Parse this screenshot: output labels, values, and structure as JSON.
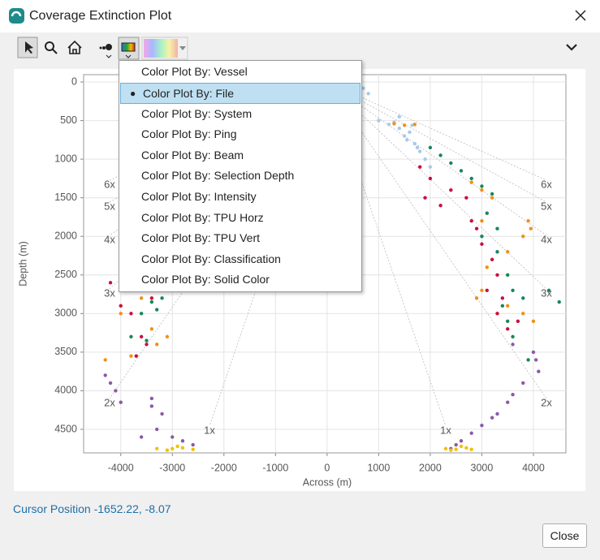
{
  "window": {
    "title": "Coverage Extinction Plot"
  },
  "menu": {
    "items": [
      "Color Plot By: Vessel",
      "Color Plot By: File",
      "Color Plot By: System",
      "Color Plot By: Ping",
      "Color Plot By: Beam",
      "Color Plot By: Selection Depth",
      "Color Plot By: Intensity",
      "Color Plot By: TPU Horz",
      "Color Plot By: TPU Vert",
      "Color Plot By: Classification",
      "Color Plot By: Solid Color"
    ],
    "selected": 1
  },
  "plot": {
    "type": "scatter",
    "xlabel": "Across (m)",
    "ylabel": "Depth (m)",
    "xlim": [
      -4720,
      4630
    ],
    "ylim": [
      -95,
      4805
    ],
    "y_inverted": true,
    "xticks": [
      -4000,
      -3000,
      -2000,
      -1000,
      0,
      1000,
      2000,
      3000,
      4000
    ],
    "yticks": [
      0,
      500,
      1000,
      1500,
      2000,
      2500,
      3000,
      3500,
      4000,
      4500
    ],
    "grid": true,
    "coverage_labels": {
      "left": [
        "6x",
        "5x",
        "4x",
        "3x",
        "2x",
        "1x"
      ],
      "right": [
        "6x",
        "5x",
        "4x",
        "3x",
        "2x",
        "1x"
      ]
    },
    "series": [
      {
        "color": "#a9c9ea",
        "x": [
          1000,
          1200,
          1400,
          1500,
          1600,
          1700,
          1800,
          1900,
          1400,
          1300,
          1550,
          700,
          800,
          2000,
          1650,
          1750
        ],
        "y": [
          500,
          550,
          600,
          700,
          650,
          800,
          900,
          1000,
          450,
          520,
          750,
          80,
          150,
          1100,
          560,
          850
        ]
      },
      {
        "color": "#17875a",
        "x": [
          2000,
          2200,
          2400,
          2600,
          2800,
          3000,
          3200,
          3100,
          3000,
          3300,
          3500,
          3600,
          3400,
          3800,
          4300,
          4500,
          3600,
          3900,
          3300,
          3500,
          -3300,
          -3600,
          -3400,
          -3800,
          -3500,
          -3200
        ],
        "y": [
          850,
          950,
          1050,
          1150,
          1250,
          1350,
          1450,
          1700,
          2000,
          2200,
          2500,
          2700,
          2900,
          2800,
          2700,
          2850,
          3300,
          3600,
          1900,
          3100,
          2950,
          3000,
          2850,
          3300,
          3350,
          2800
        ]
      },
      {
        "color": "#c8103e",
        "x": [
          1800,
          2000,
          1900,
          2200,
          2400,
          2700,
          2800,
          3000,
          3200,
          3300,
          3100,
          3300,
          3500,
          3400,
          2900,
          3700,
          -4000,
          -3800,
          -3400,
          -3600,
          -3700,
          -3500,
          -4200
        ],
        "y": [
          1100,
          1250,
          1500,
          1600,
          1400,
          1500,
          1800,
          2100,
          2300,
          2500,
          2700,
          3000,
          3200,
          2800,
          1900,
          3100,
          2900,
          3000,
          2800,
          3300,
          3550,
          3400,
          2600
        ]
      },
      {
        "color": "#f0901a",
        "x": [
          1700,
          1500,
          1300,
          2800,
          3000,
          3200,
          3900,
          3950,
          3800,
          3500,
          3100,
          3000,
          2900,
          3500,
          3800,
          4000,
          3000,
          -4300,
          -3800,
          -3300,
          -3100,
          -3400,
          -3600,
          -3200,
          -4000
        ],
        "y": [
          550,
          560,
          540,
          1300,
          1400,
          1500,
          1800,
          1900,
          2000,
          2200,
          2400,
          2700,
          2800,
          2900,
          3000,
          3100,
          1800,
          3600,
          3550,
          3400,
          3300,
          3200,
          2800,
          2700,
          3000
        ]
      },
      {
        "color": "#8a5aa8",
        "x": [
          2600,
          2800,
          3000,
          3200,
          3500,
          3800,
          4100,
          4000,
          3600,
          2500,
          3300,
          3600,
          2400,
          4050,
          -4300,
          -4100,
          -4000,
          -3400,
          -3200,
          -3300,
          -3000,
          -2800,
          -2600,
          -3600,
          -3400,
          -4200
        ],
        "y": [
          4650,
          4550,
          4450,
          4350,
          4150,
          3900,
          3750,
          3500,
          3400,
          4700,
          4300,
          4050,
          4750,
          3600,
          3800,
          4000,
          4150,
          4100,
          4300,
          4500,
          4600,
          4650,
          4700,
          4600,
          4200,
          3900
        ]
      },
      {
        "color": "#f2c200",
        "x": [
          -3300,
          -3000,
          -2800,
          -2600,
          -2900,
          -3100,
          2300,
          2500,
          2700,
          2600,
          2400,
          2800
        ],
        "y": [
          4750,
          4750,
          4740,
          4760,
          4720,
          4770,
          4750,
          4760,
          4740,
          4720,
          4770,
          4760
        ]
      }
    ]
  },
  "status": {
    "cursor_position": "Cursor Position -1652.22, -8.07"
  },
  "buttons": {
    "close": "Close"
  }
}
